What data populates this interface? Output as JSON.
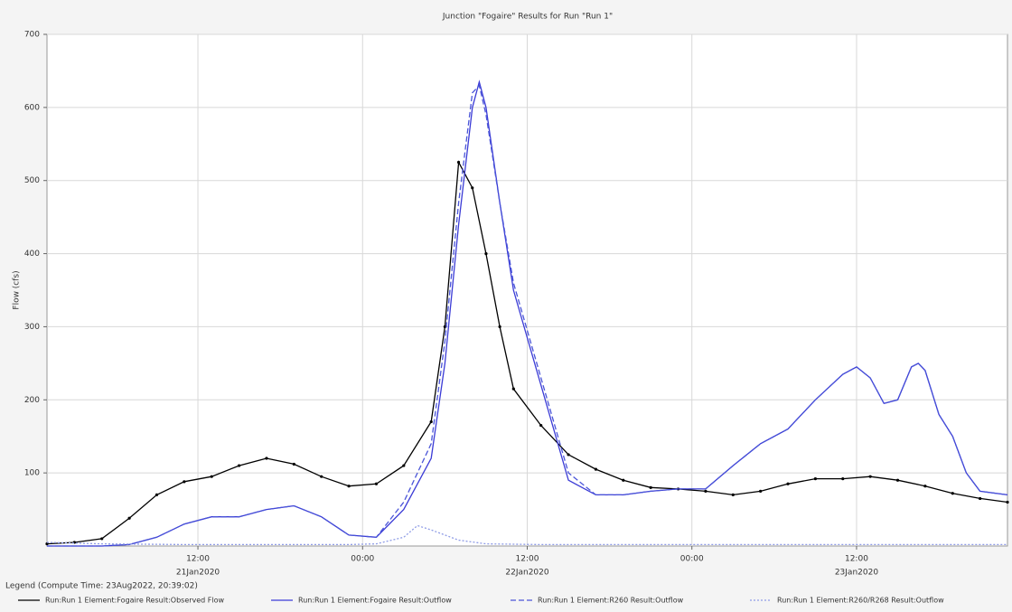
{
  "chart_data": {
    "type": "line",
    "title": "Junction \"Fogaire\" Results for Run \"Run 1\"",
    "y_label": "Flow (cfs)",
    "legend_title": "Legend (Compute Time: 23Aug2022, 20:39:02)",
    "xlim": [
      "2020-01-21T01:00",
      "2020-01-23T23:00"
    ],
    "xticks": [
      {
        "value": "2020-01-21T12:00",
        "label": "12:00"
      },
      {
        "value": "2020-01-22T00:00",
        "label": "00:00"
      },
      {
        "value": "2020-01-22T12:00",
        "label": "12:00"
      },
      {
        "value": "2020-01-23T00:00",
        "label": "00:00"
      },
      {
        "value": "2020-01-23T12:00",
        "label": "12:00"
      }
    ],
    "xtick_dates": [
      {
        "value": "2020-01-21T12:00",
        "label": "21Jan2020"
      },
      {
        "value": "2020-01-22T12:00",
        "label": "22Jan2020"
      },
      {
        "value": "2020-01-23T12:00",
        "label": "23Jan2020"
      }
    ],
    "ylim": [
      0,
      700
    ],
    "yticks": [
      100,
      200,
      300,
      400,
      500,
      600,
      700
    ],
    "grid": true,
    "legend": "bottom",
    "series": [
      {
        "name": "Run:Run 1 Element:Fogaire Result:Observed Flow",
        "color": "#000000",
        "style": "solid-markers",
        "x": [
          "2020-01-21T01:00",
          "2020-01-21T03:00",
          "2020-01-21T05:00",
          "2020-01-21T07:00",
          "2020-01-21T09:00",
          "2020-01-21T11:00",
          "2020-01-21T13:00",
          "2020-01-21T15:00",
          "2020-01-21T17:00",
          "2020-01-21T19:00",
          "2020-01-21T21:00",
          "2020-01-21T23:00",
          "2020-01-22T01:00",
          "2020-01-22T03:00",
          "2020-01-22T05:00",
          "2020-01-22T06:00",
          "2020-01-22T07:00",
          "2020-01-22T08:00",
          "2020-01-22T09:00",
          "2020-01-22T10:00",
          "2020-01-22T11:00",
          "2020-01-22T13:00",
          "2020-01-22T15:00",
          "2020-01-22T17:00",
          "2020-01-22T19:00",
          "2020-01-22T21:00",
          "2020-01-22T23:00",
          "2020-01-23T01:00",
          "2020-01-23T03:00",
          "2020-01-23T05:00",
          "2020-01-23T07:00",
          "2020-01-23T09:00",
          "2020-01-23T11:00",
          "2020-01-23T13:00",
          "2020-01-23T15:00",
          "2020-01-23T17:00",
          "2020-01-23T19:00",
          "2020-01-23T21:00",
          "2020-01-23T23:00"
        ],
        "values": [
          3,
          5,
          10,
          38,
          70,
          88,
          95,
          110,
          120,
          112,
          95,
          82,
          85,
          110,
          170,
          300,
          525,
          490,
          400,
          300,
          215,
          165,
          125,
          105,
          90,
          80,
          78,
          75,
          70,
          75,
          85,
          92,
          92,
          95,
          90,
          82,
          72,
          65,
          60
        ]
      },
      {
        "name": "Run:Run 1 Element:Fogaire Result:Outflow",
        "color": "#3b3bd6",
        "style": "solid",
        "x": [
          "2020-01-21T01:00",
          "2020-01-21T05:00",
          "2020-01-21T07:00",
          "2020-01-21T09:00",
          "2020-01-21T11:00",
          "2020-01-21T13:00",
          "2020-01-21T15:00",
          "2020-01-21T17:00",
          "2020-01-21T19:00",
          "2020-01-21T21:00",
          "2020-01-21T23:00",
          "2020-01-22T01:00",
          "2020-01-22T03:00",
          "2020-01-22T05:00",
          "2020-01-22T06:00",
          "2020-01-22T07:00",
          "2020-01-22T08:00",
          "2020-01-22T08:30",
          "2020-01-22T09:00",
          "2020-01-22T10:00",
          "2020-01-22T11:00",
          "2020-01-22T13:00",
          "2020-01-22T15:00",
          "2020-01-22T17:00",
          "2020-01-22T19:00",
          "2020-01-22T21:00",
          "2020-01-22T23:00",
          "2020-01-23T01:00",
          "2020-01-23T03:00",
          "2020-01-23T05:00",
          "2020-01-23T07:00",
          "2020-01-23T09:00",
          "2020-01-23T11:00",
          "2020-01-23T12:00",
          "2020-01-23T13:00",
          "2020-01-23T14:00",
          "2020-01-23T15:00",
          "2020-01-23T16:00",
          "2020-01-23T16:30",
          "2020-01-23T17:00",
          "2020-01-23T18:00",
          "2020-01-23T19:00",
          "2020-01-23T20:00",
          "2020-01-23T21:00",
          "2020-01-23T23:00"
        ],
        "values": [
          0,
          0,
          2,
          12,
          30,
          40,
          40,
          50,
          55,
          40,
          15,
          12,
          50,
          120,
          250,
          440,
          600,
          635,
          600,
          470,
          350,
          220,
          90,
          70,
          70,
          75,
          78,
          78,
          110,
          140,
          160,
          200,
          235,
          245,
          230,
          195,
          200,
          245,
          250,
          240,
          180,
          150,
          100,
          75,
          70
        ]
      },
      {
        "name": "Run:Run 1 Element:R260 Result:Outflow",
        "color": "#4a55d8",
        "style": "dashed",
        "x": [
          "2020-01-21T01:00",
          "2020-01-21T05:00",
          "2020-01-21T07:00",
          "2020-01-21T09:00",
          "2020-01-21T11:00",
          "2020-01-21T13:00",
          "2020-01-21T15:00",
          "2020-01-21T17:00",
          "2020-01-21T19:00",
          "2020-01-21T21:00",
          "2020-01-21T23:00",
          "2020-01-22T01:00",
          "2020-01-22T03:00",
          "2020-01-22T05:00",
          "2020-01-22T06:00",
          "2020-01-22T07:00",
          "2020-01-22T08:00",
          "2020-01-22T08:30",
          "2020-01-22T09:00",
          "2020-01-22T10:00",
          "2020-01-22T11:00",
          "2020-01-22T13:00",
          "2020-01-22T15:00",
          "2020-01-22T17:00",
          "2020-01-22T19:00",
          "2020-01-22T21:00",
          "2020-01-22T23:00",
          "2020-01-23T01:00",
          "2020-01-23T03:00",
          "2020-01-23T05:00",
          "2020-01-23T07:00",
          "2020-01-23T09:00",
          "2020-01-23T11:00",
          "2020-01-23T12:00",
          "2020-01-23T13:00",
          "2020-01-23T14:00",
          "2020-01-23T15:00",
          "2020-01-23T16:00",
          "2020-01-23T16:30",
          "2020-01-23T17:00",
          "2020-01-23T18:00",
          "2020-01-23T19:00",
          "2020-01-23T20:00",
          "2020-01-23T21:00",
          "2020-01-23T23:00"
        ],
        "values": [
          0,
          0,
          2,
          12,
          30,
          40,
          40,
          50,
          55,
          40,
          15,
          12,
          60,
          140,
          280,
          470,
          620,
          630,
          590,
          470,
          360,
          230,
          100,
          70,
          70,
          75,
          78,
          78,
          110,
          140,
          160,
          200,
          235,
          245,
          230,
          195,
          200,
          245,
          250,
          240,
          180,
          150,
          100,
          75,
          70
        ]
      },
      {
        "name": "Run:Run 1 Element:R260/R268 Result:Outflow",
        "color": "#8f9ce6",
        "style": "dotted",
        "x": [
          "2020-01-21T01:00",
          "2020-01-21T05:00",
          "2020-01-21T11:00",
          "2020-01-21T17:00",
          "2020-01-21T23:00",
          "2020-01-22T01:00",
          "2020-01-22T03:00",
          "2020-01-22T04:00",
          "2020-01-22T05:00",
          "2020-01-22T07:00",
          "2020-01-22T09:00",
          "2020-01-22T13:00",
          "2020-01-23T03:00",
          "2020-01-23T23:00"
        ],
        "values": [
          5,
          3,
          2,
          2,
          2,
          3,
          12,
          28,
          22,
          8,
          3,
          2,
          2,
          2
        ]
      }
    ]
  }
}
